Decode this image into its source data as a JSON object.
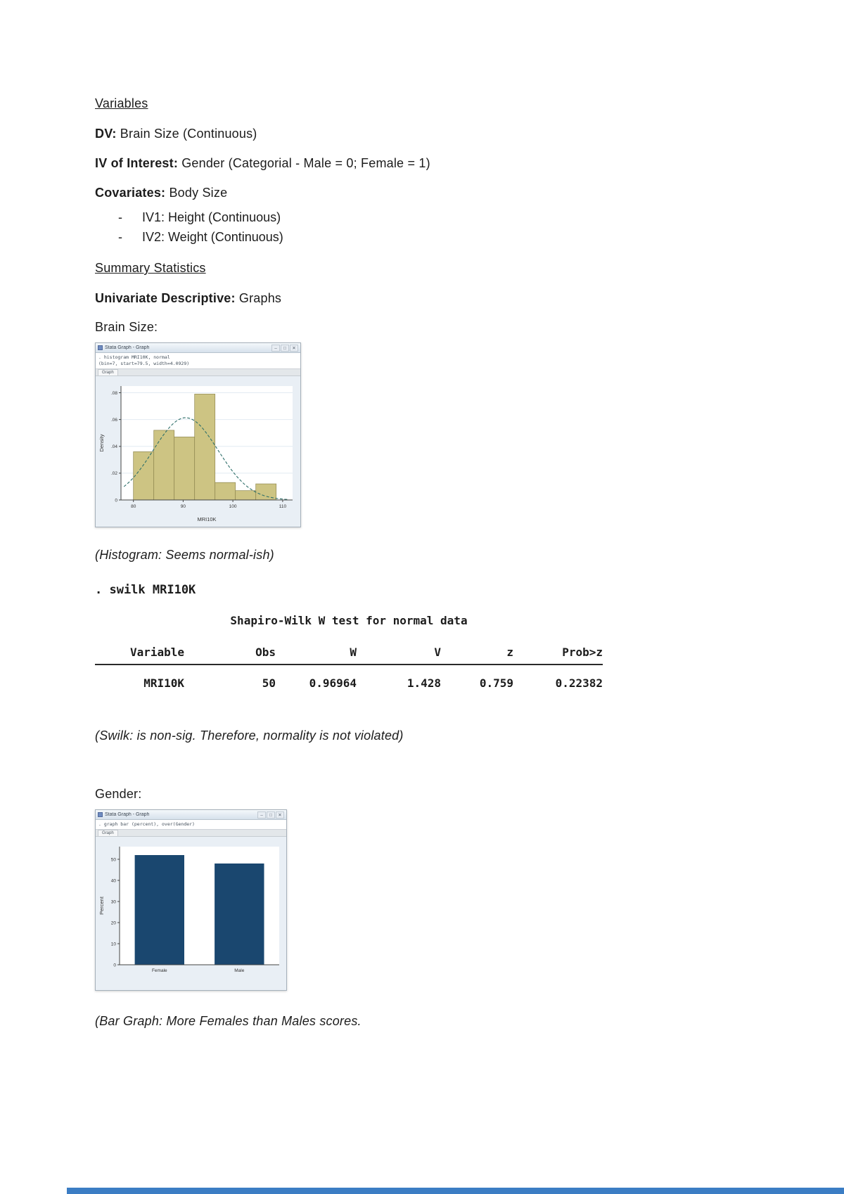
{
  "document": {
    "variables_heading": "Variables",
    "dv_label": "DV:",
    "dv_value": " Brain Size (Continuous)",
    "iv_label": "IV of Interest:",
    "iv_value": " Gender (Categorial - Male = 0; Female = 1)",
    "cov_label": "Covariates:",
    "cov_value": " Body Size",
    "bullets": [
      {
        "marker": "-",
        "text": "IV1: Height (Continuous)"
      },
      {
        "marker": "-",
        "text": "IV2: Weight (Continuous)"
      }
    ],
    "summary_heading": "Summary Statistics",
    "univariate_label": "Univariate Descriptive:",
    "univariate_value": " Graphs",
    "brain_size_label": "Brain Size:",
    "histogram_caption": "(Histogram: Seems normal-ish)",
    "swilk_command": ". swilk MRI10K",
    "swilk_caption": "(Swilk: is non-sig. Therefore, normality is not violated)",
    "gender_label": "Gender:",
    "bar_caption": "(Bar Graph: More Females than Males scores."
  },
  "swilk_table": {
    "title": "Shapiro-Wilk W test for normal data",
    "headers": [
      "Variable",
      "Obs",
      "W",
      "V",
      "z",
      "Prob>z"
    ],
    "row": [
      "MRI10K",
      "50",
      "0.96964",
      "1.428",
      "0.759",
      "0.22382"
    ]
  },
  "histogram_window": {
    "title": "Stata Graph - Graph",
    "minimize": "–",
    "maximize": "□",
    "close": "✕",
    "lines": [
      ". histogram MRI10K, normal",
      "(bin=7, start=79.5, width=4.0929)"
    ],
    "tab_label": "Graph"
  },
  "bar_window": {
    "title": "Stata Graph - Graph",
    "minimize": "–",
    "maximize": "□",
    "close": "✕",
    "lines": [
      ". graph bar (percent), over(Gender)"
    ],
    "tab_label": "Graph"
  },
  "chart_data": [
    {
      "type": "bar",
      "subtype": "histogram",
      "title": "",
      "xlabel": "MRI10K",
      "ylabel": "Density",
      "bin_start": 80,
      "bin_width": 4.1,
      "values": [
        0.036,
        0.052,
        0.047,
        0.079,
        0.013,
        0.007,
        0.012
      ],
      "x_ticks": [
        80,
        90,
        100,
        110
      ],
      "y_ticks": [
        0,
        0.02,
        0.04,
        0.06,
        0.08
      ],
      "y_tick_labels": [
        "0",
        ".02",
        ".04",
        ".06",
        ".08"
      ],
      "xlim": [
        77.5,
        112
      ],
      "ylim": [
        0,
        0.085
      ],
      "normal_overlay": {
        "mean": 90.5,
        "sd": 6.5
      },
      "bar_color": "#cdc483",
      "bar_edge_color": "#8f8850",
      "curve_color": "#2e6f6a",
      "grid": true,
      "legend": false
    },
    {
      "type": "bar",
      "categories": [
        "Female",
        "Male"
      ],
      "values": [
        52,
        48
      ],
      "xlabel": "",
      "ylabel": "Percent",
      "y_ticks": [
        0,
        10,
        20,
        30,
        40,
        50
      ],
      "ylim": [
        0,
        56
      ],
      "bar_color": "#1a476f",
      "grid": false,
      "legend": false
    }
  ]
}
